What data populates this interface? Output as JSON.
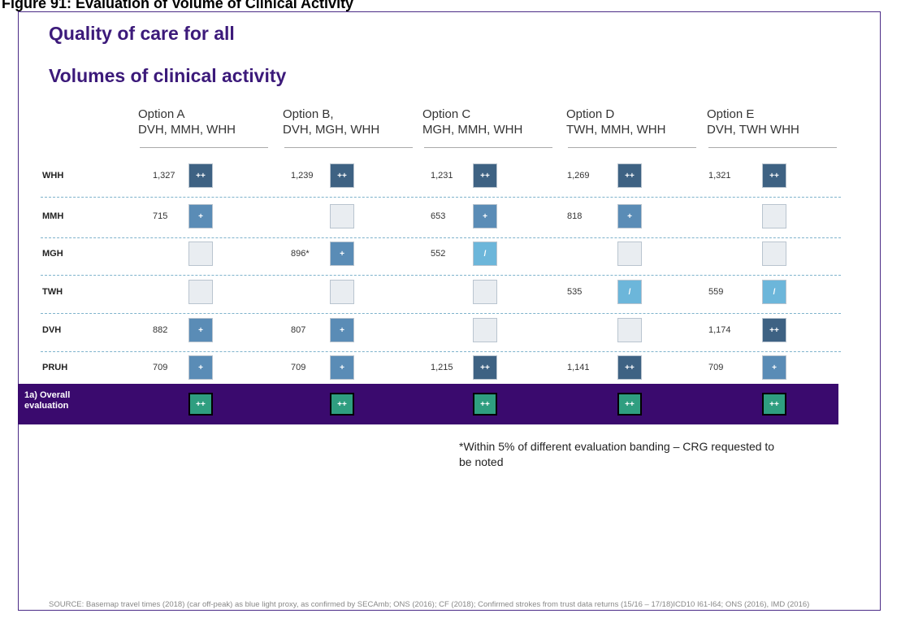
{
  "caption": "Figure 91: Evaluation of Volume of Clinical Activity",
  "title": "Quality of care for all",
  "subtitle": "Volumes of clinical activity",
  "table": {
    "columns": [
      {
        "name": "Option A",
        "sites": "DVH, MMH, WHH"
      },
      {
        "name": "Option B,",
        "sites": "DVH, MGH, WHH"
      },
      {
        "name": "Option C",
        "sites": "MGH, MMH, WHH"
      },
      {
        "name": "Option D",
        "sites": "TWH, MMH, WHH"
      },
      {
        "name": "Option E",
        "sites": "DVH, TWH WHH"
      }
    ],
    "rows": [
      {
        "label": "WHH",
        "cells": [
          {
            "value": "1,327",
            "rating": "++",
            "color": "#3e6283"
          },
          {
            "value": "1,239",
            "rating": "++",
            "color": "#3e6283"
          },
          {
            "value": "1,231",
            "rating": "++",
            "color": "#3e6283"
          },
          {
            "value": "1,269",
            "rating": "++",
            "color": "#3e6283"
          },
          {
            "value": "1,321",
            "rating": "++",
            "color": "#3e6283"
          }
        ]
      },
      {
        "label": "MMH",
        "cells": [
          {
            "value": "715",
            "rating": "+",
            "color": "#5a8cb6"
          },
          {
            "value": null,
            "rating": null,
            "color": "#e9edf1"
          },
          {
            "value": "653",
            "rating": "+",
            "color": "#5a8cb6"
          },
          {
            "value": "818",
            "rating": "+",
            "color": "#5a8cb6"
          },
          {
            "value": null,
            "rating": null,
            "color": "#e9edf1"
          }
        ]
      },
      {
        "label": "MGH",
        "cells": [
          {
            "value": null,
            "rating": null,
            "color": "#e9edf1"
          },
          {
            "value": "896*",
            "rating": "+",
            "color": "#5a8cb6"
          },
          {
            "value": "552",
            "rating": "/",
            "color": "#6cb6da"
          },
          {
            "value": null,
            "rating": null,
            "color": "#e9edf1"
          },
          {
            "value": null,
            "rating": null,
            "color": "#e9edf1"
          }
        ]
      },
      {
        "label": "TWH",
        "cells": [
          {
            "value": null,
            "rating": null,
            "color": "#e9edf1"
          },
          {
            "value": null,
            "rating": null,
            "color": "#e9edf1"
          },
          {
            "value": null,
            "rating": null,
            "color": "#e9edf1"
          },
          {
            "value": "535",
            "rating": "/",
            "color": "#6cb6da"
          },
          {
            "value": "559",
            "rating": "/",
            "color": "#6cb6da"
          }
        ]
      },
      {
        "label": "DVH",
        "cells": [
          {
            "value": "882",
            "rating": "+",
            "color": "#5a8cb6"
          },
          {
            "value": "807",
            "rating": "+",
            "color": "#5a8cb6"
          },
          {
            "value": null,
            "rating": null,
            "color": "#e9edf1"
          },
          {
            "value": null,
            "rating": null,
            "color": "#e9edf1"
          },
          {
            "value": "1,174",
            "rating": "++",
            "color": "#3e6283"
          }
        ]
      },
      {
        "label": "PRUH",
        "cells": [
          {
            "value": "709",
            "rating": "+",
            "color": "#5a8cb6"
          },
          {
            "value": "709",
            "rating": "+",
            "color": "#5a8cb6"
          },
          {
            "value": "1,215",
            "rating": "++",
            "color": "#3e6283"
          },
          {
            "value": "1,141",
            "rating": "++",
            "color": "#3e6283"
          },
          {
            "value": "709",
            "rating": "+",
            "color": "#5a8cb6"
          }
        ]
      }
    ],
    "overall": {
      "label": "1a) Overall evaluation",
      "color": "#2f9e80",
      "ratings": [
        "++",
        "++",
        "++",
        "++",
        "++"
      ]
    }
  },
  "note": "*Within 5% of different evaluation banding – CRG requested to be noted",
  "source": "SOURCE: Basemap travel times (2018) (car off-peak) as blue light proxy, as confirmed by SECAmb; ONS (2016); CF (2018); Confirmed strokes from trust data returns (15/16 – 17/18)ICD10 I61-I64; ONS (2016), IMD (2016)"
}
